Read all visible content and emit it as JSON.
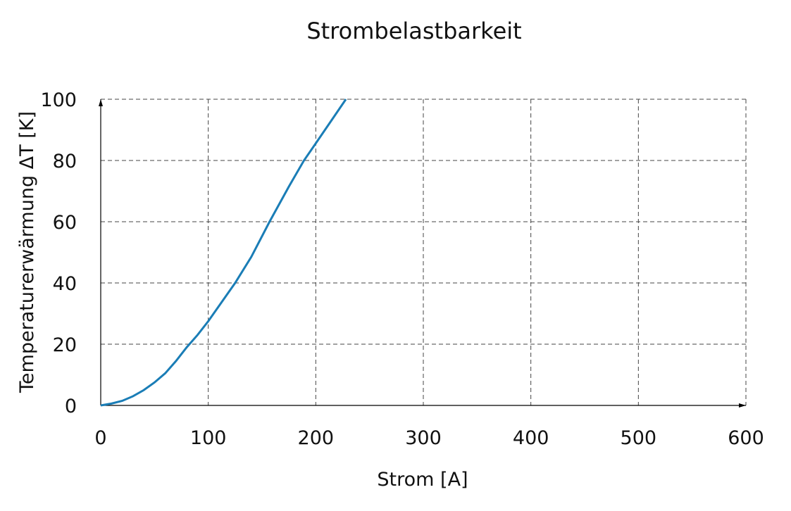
{
  "chart_data": {
    "type": "line",
    "title": "Strombelastbarkeit",
    "x_label": "Strom [A]",
    "y_label": "Temperaturerwärmung ΔT [K]",
    "xlim": [
      0,
      600
    ],
    "xticks": [
      0,
      100,
      200,
      300,
      400,
      500,
      600
    ],
    "ylim": [
      0,
      100
    ],
    "yticks": [
      0,
      20,
      40,
      60,
      80,
      100
    ],
    "grid": true,
    "series": [
      {
        "color": "#1a7db6",
        "x": [
          0,
          10,
          20,
          30,
          40,
          50,
          60,
          70,
          80,
          90,
          100,
          110,
          120,
          125,
          140,
          157,
          175,
          189,
          200,
          215,
          228
        ],
        "values": [
          0,
          0.6,
          1.5,
          3,
          5,
          7.5,
          10.5,
          14.5,
          19,
          23,
          27.5,
          32.5,
          37.5,
          40,
          48.5,
          60,
          71.5,
          80,
          85.6,
          93.3,
          100
        ]
      }
    ]
  }
}
